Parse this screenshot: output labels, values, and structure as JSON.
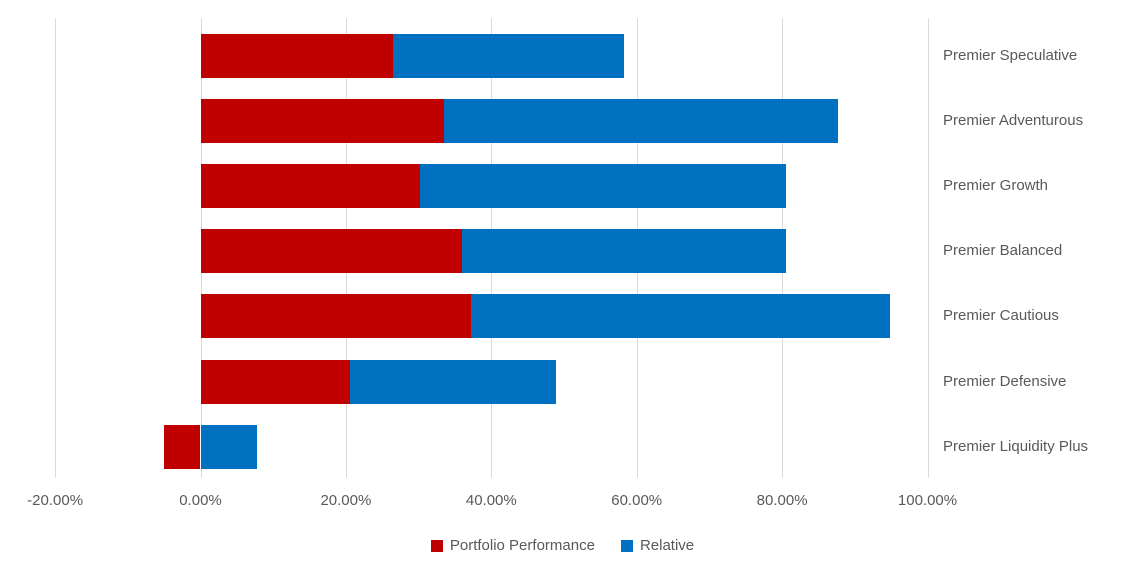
{
  "chart_data": {
    "type": "bar",
    "orientation": "horizontal",
    "stacked": true,
    "title": "",
    "xlabel": "",
    "ylabel": "",
    "categories": [
      "Premier Speculative",
      "Premier Adventurous",
      "Premier Growth",
      "Premier Balanced",
      "Premier Cautious",
      "Premier Defensive",
      "Premier Liquidity Plus"
    ],
    "series": [
      {
        "name": "Portfolio Performance",
        "color": "#C00000",
        "values": [
          26.5,
          33.5,
          30.2,
          36.0,
          37.2,
          20.5,
          -5.0
        ]
      },
      {
        "name": "Relative",
        "color": "#0070C0",
        "values": [
          31.8,
          54.2,
          50.4,
          44.6,
          57.7,
          28.4,
          7.8
        ]
      }
    ],
    "stacked_totals_pct": [
      58.3,
      87.7,
      80.6,
      80.6,
      94.9,
      48.9,
      7.8
    ],
    "x_axis": {
      "min": -20,
      "max": 100,
      "tick_step": 20,
      "tick_format": "0.00%",
      "tick_labels": [
        "-20.00%",
        "0.00%",
        "20.00%",
        "40.00%",
        "60.00%",
        "80.00%",
        "100.00%"
      ]
    },
    "grid": true,
    "legend_position": "bottom",
    "colors": {
      "gridline": "#D9D9D9",
      "text": "#595959",
      "background": "#FFFFFF"
    }
  }
}
